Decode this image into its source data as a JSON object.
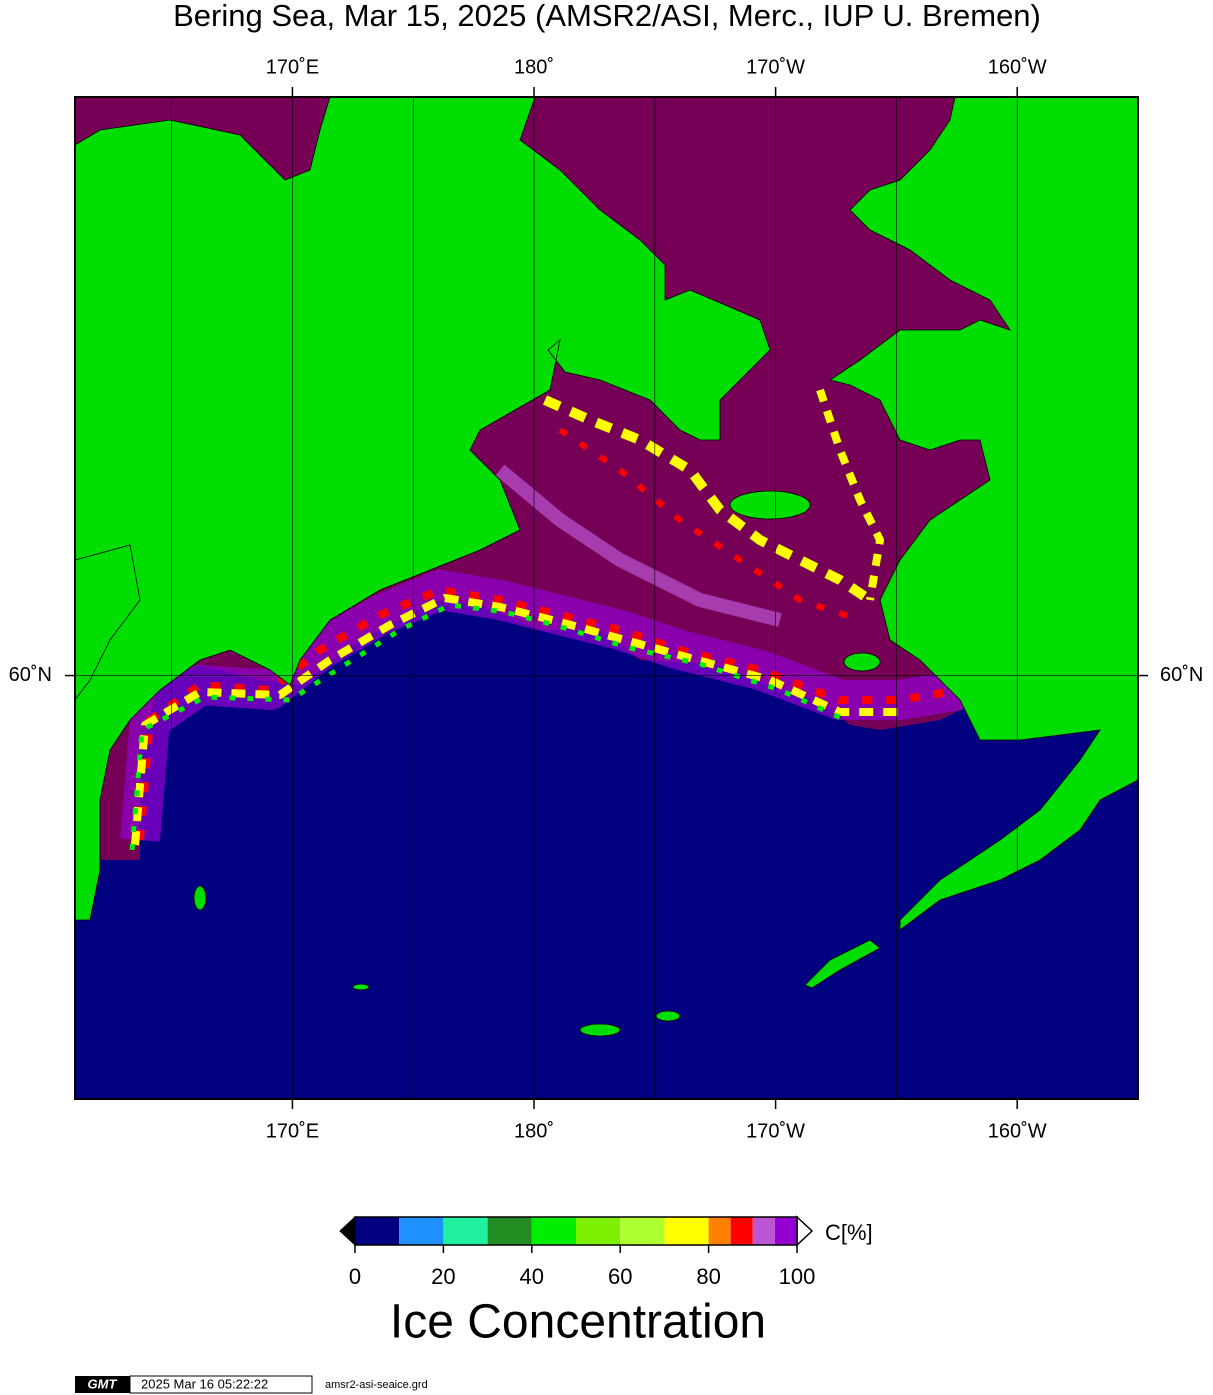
{
  "map": {
    "title": "Bering Sea, Mar 15, 2025 (AMSR2/ASI, Merc., IUP U. Bremen)",
    "lonlim": [
      161,
      205
    ],
    "latlim": [
      50,
      70
    ],
    "lon_ticks": [
      {
        "value": 170,
        "label": "170˚E"
      },
      {
        "value": 180,
        "label": "180˚"
      },
      {
        "value": 190,
        "label": "170˚W"
      },
      {
        "value": 200,
        "label": "160˚W"
      }
    ],
    "lat_ticks": [
      {
        "value": 60,
        "label": "60˚N"
      }
    ],
    "lon_gridlines": [
      165,
      175,
      185,
      195
    ]
  },
  "colorbar": {
    "bounds": [
      0,
      10,
      20,
      30,
      40,
      50,
      60,
      70,
      80,
      85,
      90,
      95,
      100
    ],
    "colors": [
      "#000080",
      "#1e90ff",
      "#20f0a0",
      "#228b22",
      "#00ee00",
      "#7cf000",
      "#adff2f",
      "#ffff00",
      "#ff7f00",
      "#ff0000",
      "#ba55d3",
      "#9400d3"
    ],
    "ticks": [
      0,
      20,
      40,
      60,
      80,
      100
    ],
    "unit": "C[%]",
    "label": "Ice Concentration"
  },
  "footer": {
    "logo": "GMT",
    "timestamp": "2025 Mar 16 05:22:22",
    "file": "amsr2-asi-seaice.grd"
  }
}
